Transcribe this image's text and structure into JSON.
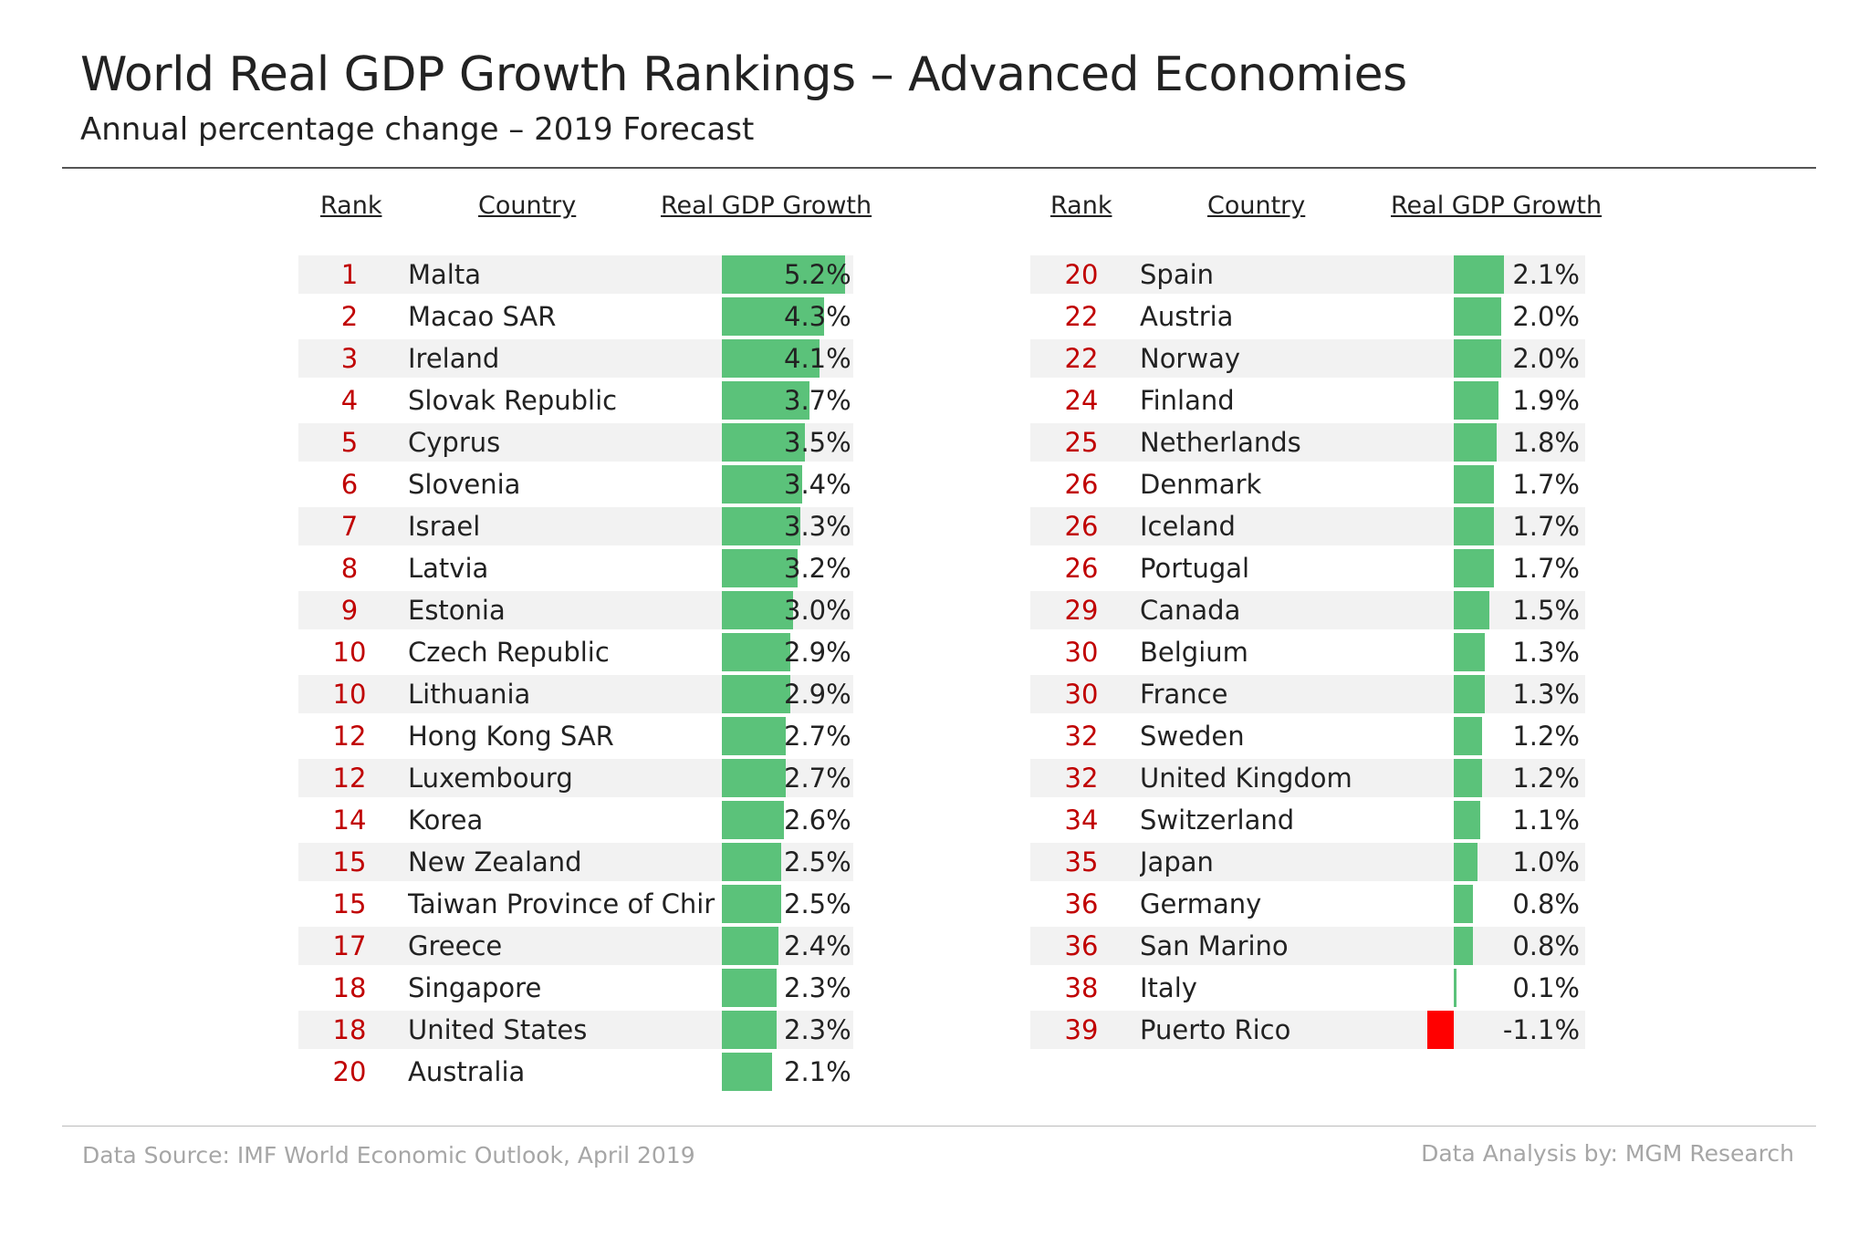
{
  "title": "World Real GDP Growth Rankings – Advanced Economies",
  "subtitle": "Annual percentage change – 2019 Forecast",
  "headers": {
    "rank": "Rank",
    "country": "Country",
    "growth": "Real GDP Growth"
  },
  "footer": {
    "source": "Data Source: IMF World Economic Outlook, April 2019",
    "credit": "Data Analysis by: MGM Research"
  },
  "colors": {
    "positive": "#5bc27a",
    "negative": "#ff0000",
    "rank": "#c00000"
  },
  "chart_data": [
    {
      "type": "bar",
      "title": "",
      "rows": [
        {
          "rank": "1",
          "country": "Malta",
          "value": 5.2,
          "label": "5.2%"
        },
        {
          "rank": "2",
          "country": "Macao SAR",
          "value": 4.3,
          "label": "4.3%"
        },
        {
          "rank": "3",
          "country": "Ireland",
          "value": 4.1,
          "label": "4.1%"
        },
        {
          "rank": "4",
          "country": "Slovak Republic",
          "value": 3.7,
          "label": "3.7%"
        },
        {
          "rank": "5",
          "country": "Cyprus",
          "value": 3.5,
          "label": "3.5%"
        },
        {
          "rank": "6",
          "country": "Slovenia",
          "value": 3.4,
          "label": "3.4%"
        },
        {
          "rank": "7",
          "country": "Israel",
          "value": 3.3,
          "label": "3.3%"
        },
        {
          "rank": "8",
          "country": "Latvia",
          "value": 3.2,
          "label": "3.2%"
        },
        {
          "rank": "9",
          "country": "Estonia",
          "value": 3.0,
          "label": "3.0%"
        },
        {
          "rank": "10",
          "country": "Czech Republic",
          "value": 2.9,
          "label": "2.9%"
        },
        {
          "rank": "10",
          "country": "Lithuania",
          "value": 2.9,
          "label": "2.9%"
        },
        {
          "rank": "12",
          "country": "Hong Kong SAR",
          "value": 2.7,
          "label": "2.7%"
        },
        {
          "rank": "12",
          "country": "Luxembourg",
          "value": 2.7,
          "label": "2.7%"
        },
        {
          "rank": "14",
          "country": "Korea",
          "value": 2.6,
          "label": "2.6%"
        },
        {
          "rank": "15",
          "country": "New Zealand",
          "value": 2.5,
          "label": "2.5%"
        },
        {
          "rank": "15",
          "country": "Taiwan Province of Chir",
          "value": 2.5,
          "label": "2.5%"
        },
        {
          "rank": "17",
          "country": "Greece",
          "value": 2.4,
          "label": "2.4%"
        },
        {
          "rank": "18",
          "country": "Singapore",
          "value": 2.3,
          "label": "2.3%"
        },
        {
          "rank": "18",
          "country": "United States",
          "value": 2.3,
          "label": "2.3%"
        },
        {
          "rank": "20",
          "country": "Australia",
          "value": 2.1,
          "label": "2.1%"
        }
      ]
    },
    {
      "type": "bar",
      "title": "",
      "rows": [
        {
          "rank": "20",
          "country": "Spain",
          "value": 2.1,
          "label": "2.1%"
        },
        {
          "rank": "22",
          "country": "Austria",
          "value": 2.0,
          "label": "2.0%"
        },
        {
          "rank": "22",
          "country": "Norway",
          "value": 2.0,
          "label": "2.0%"
        },
        {
          "rank": "24",
          "country": "Finland",
          "value": 1.9,
          "label": "1.9%"
        },
        {
          "rank": "25",
          "country": "Netherlands",
          "value": 1.8,
          "label": "1.8%"
        },
        {
          "rank": "26",
          "country": "Denmark",
          "value": 1.7,
          "label": "1.7%"
        },
        {
          "rank": "26",
          "country": "Iceland",
          "value": 1.7,
          "label": "1.7%"
        },
        {
          "rank": "26",
          "country": "Portugal",
          "value": 1.7,
          "label": "1.7%"
        },
        {
          "rank": "29",
          "country": "Canada",
          "value": 1.5,
          "label": "1.5%"
        },
        {
          "rank": "30",
          "country": "Belgium",
          "value": 1.3,
          "label": "1.3%"
        },
        {
          "rank": "30",
          "country": "France",
          "value": 1.3,
          "label": "1.3%"
        },
        {
          "rank": "32",
          "country": "Sweden",
          "value": 1.2,
          "label": "1.2%"
        },
        {
          "rank": "32",
          "country": "United Kingdom",
          "value": 1.2,
          "label": "1.2%"
        },
        {
          "rank": "34",
          "country": "Switzerland",
          "value": 1.1,
          "label": "1.1%"
        },
        {
          "rank": "35",
          "country": "Japan",
          "value": 1.0,
          "label": "1.0%"
        },
        {
          "rank": "36",
          "country": "Germany",
          "value": 0.8,
          "label": "0.8%"
        },
        {
          "rank": "36",
          "country": "San Marino",
          "value": 0.8,
          "label": "0.8%"
        },
        {
          "rank": "38",
          "country": "Italy",
          "value": 0.1,
          "label": "0.1%"
        },
        {
          "rank": "39",
          "country": "Puerto Rico",
          "value": -1.1,
          "label": "-1.1%"
        }
      ]
    }
  ]
}
